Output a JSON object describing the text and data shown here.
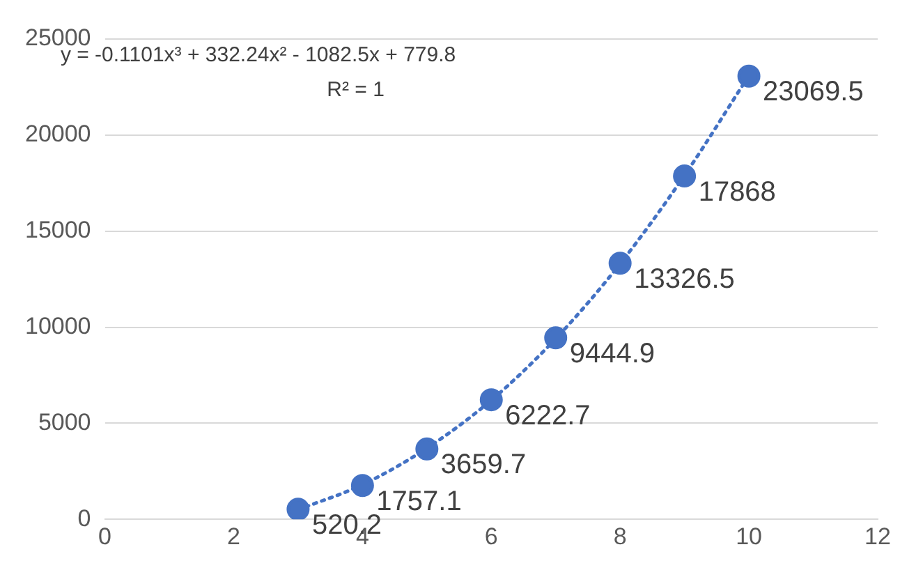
{
  "chart_data": {
    "type": "scatter",
    "x": [
      3,
      4,
      5,
      6,
      7,
      8,
      9,
      10
    ],
    "series": [
      {
        "type": "scatter",
        "color": "#4472c4",
        "marker": "circle",
        "values": [
          520.2,
          1757.1,
          3659.7,
          6222.7,
          9444.9,
          13326.5,
          17868,
          23069.5
        ],
        "value_labels": [
          "520.2",
          "1757.1",
          "3659.7",
          "6222.7",
          "9444.9",
          "13326.5",
          "17868",
          "23069.5"
        ]
      },
      {
        "type": "line",
        "color": "#4472c4",
        "line_style": "dotted",
        "x": [
          3,
          4,
          5,
          6,
          7,
          8,
          9,
          10
        ],
        "values": [
          500,
          1800,
          3700,
          6200,
          9400,
          13300,
          17900,
          23100
        ]
      }
    ],
    "annotations": [
      "y = -0.1101x³ + 332.24x² - 1082.5x + 779.8",
      "R² = 1"
    ],
    "xlim": [
      0,
      12
    ],
    "xticks": [
      0,
      2,
      4,
      6,
      8,
      10,
      12
    ],
    "ylim": [
      0,
      25000
    ],
    "yticks": [
      0,
      5000,
      10000,
      15000,
      20000,
      25000
    ],
    "grid": "y",
    "legend": false
  }
}
